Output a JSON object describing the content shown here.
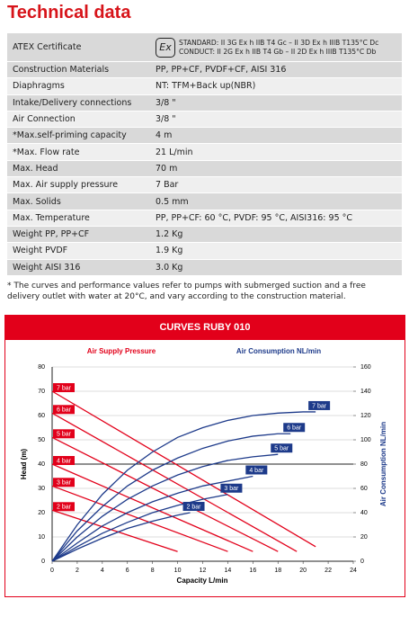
{
  "title": "Technical data",
  "table": {
    "atex": {
      "label": "ATEX Certificate",
      "symbol": "Ex",
      "lines": [
        "STANDARD: II 3G Ex h IIB T4 Gc – II 3D Ex h IIIB T135°C Dc",
        "CONDUCT: II 2G Ex h IIB T4 Gb – II 2D Ex h IIIB T135°C Db"
      ]
    },
    "rows": [
      [
        "Construction Materials",
        "PP, PP+CF, PVDF+CF, AISI 316"
      ],
      [
        "Diaphragms",
        "NT: TFM+Back up(NBR)"
      ],
      [
        "Intake/Delivery connections",
        "3/8 \""
      ],
      [
        "Air Connection",
        "3/8 \""
      ],
      [
        "*Max.self-priming capacity",
        "4 m"
      ],
      [
        "*Max. Flow rate",
        "21 L/min"
      ],
      [
        "Max. Head",
        "70 m"
      ],
      [
        "Max. Air supply pressure",
        "7 Bar"
      ],
      [
        "Max. Solids",
        "0.5 mm"
      ],
      [
        "Max. Temperature",
        "PP, PP+CF: 60 °C, PVDF: 95 °C, AISI316: 95 °C"
      ],
      [
        "Weight PP, PP+CF",
        "1.2 Kg"
      ],
      [
        "Weight PVDF",
        "1.9 Kg"
      ],
      [
        "Weight AISI 316",
        "3.0 Kg"
      ]
    ]
  },
  "footnote": "* The curves and performance values refer to pumps with submerged suction and a free delivery outlet with water at 20°C, and vary according to the construction material.",
  "chart_data": {
    "type": "line",
    "title": "CURVES RUBY 010",
    "subtitle_left": "Air Supply Pressure",
    "subtitle_right": "Air Consumption NL/min",
    "xlabel": "Capacity L/min",
    "ylabel": "Head (m)",
    "y2label": "Air Consumption NL/min",
    "xlim": [
      0,
      24
    ],
    "xticks": [
      0,
      2,
      4,
      6,
      8,
      10,
      12,
      14,
      16,
      18,
      20,
      22,
      24
    ],
    "ylim": [
      0,
      80
    ],
    "yticks": [
      0,
      10,
      20,
      30,
      40,
      50,
      60,
      70,
      80
    ],
    "y2lim": [
      0,
      160
    ],
    "y2ticks": [
      0,
      20,
      40,
      60,
      80,
      100,
      120,
      140,
      160
    ],
    "grid": true,
    "series": [
      {
        "name": "7 bar",
        "color": "#e2001a",
        "x": [
          0,
          21
        ],
        "values": [
          70,
          6
        ]
      },
      {
        "name": "6 bar",
        "color": "#e2001a",
        "x": [
          0,
          19.5
        ],
        "values": [
          61,
          4
        ]
      },
      {
        "name": "5 bar",
        "color": "#e2001a",
        "x": [
          0,
          18
        ],
        "values": [
          51,
          4
        ]
      },
      {
        "name": "4 bar",
        "color": "#e2001a",
        "x": [
          0,
          16
        ],
        "values": [
          40,
          4
        ]
      },
      {
        "name": "3 bar",
        "color": "#e2001a",
        "x": [
          0,
          14
        ],
        "values": [
          31,
          4
        ]
      },
      {
        "name": "2 bar",
        "color": "#e2001a",
        "x": [
          0,
          10
        ],
        "values": [
          21,
          4
        ]
      },
      {
        "name": "7 bar",
        "color": "#1d3a8a",
        "axis": "y2",
        "x": [
          0,
          2,
          4,
          6,
          8,
          10,
          12,
          14,
          16,
          18,
          20,
          21
        ],
        "values": [
          0,
          30,
          55,
          75,
          90,
          102,
          110,
          116,
          120,
          122,
          123,
          123
        ]
      },
      {
        "name": "6 bar",
        "color": "#1d3a8a",
        "axis": "y2",
        "x": [
          0,
          2,
          4,
          6,
          8,
          10,
          12,
          14,
          16,
          18,
          19
        ],
        "values": [
          0,
          25,
          45,
          62,
          75,
          85,
          93,
          99,
          103,
          105,
          105
        ]
      },
      {
        "name": "5 bar",
        "color": "#1d3a8a",
        "axis": "y2",
        "x": [
          0,
          2,
          4,
          6,
          8,
          10,
          12,
          14,
          16,
          18
        ],
        "values": [
          0,
          20,
          37,
          51,
          62,
          71,
          78,
          83,
          86,
          88
        ]
      },
      {
        "name": "4 bar",
        "color": "#1d3a8a",
        "axis": "y2",
        "x": [
          0,
          2,
          4,
          6,
          8,
          10,
          12,
          14,
          16
        ],
        "values": [
          0,
          15,
          29,
          40,
          49,
          56,
          62,
          66,
          70
        ]
      },
      {
        "name": "3 bar",
        "color": "#1d3a8a",
        "axis": "y2",
        "x": [
          0,
          2,
          4,
          6,
          8,
          10,
          12,
          14
        ],
        "values": [
          0,
          12,
          23,
          32,
          40,
          46,
          51,
          55
        ]
      },
      {
        "name": "2 bar",
        "color": "#1d3a8a",
        "axis": "y2",
        "x": [
          0,
          2,
          4,
          6,
          8,
          10,
          11
        ],
        "values": [
          0,
          10,
          19,
          27,
          33,
          38,
          40
        ]
      }
    ]
  }
}
